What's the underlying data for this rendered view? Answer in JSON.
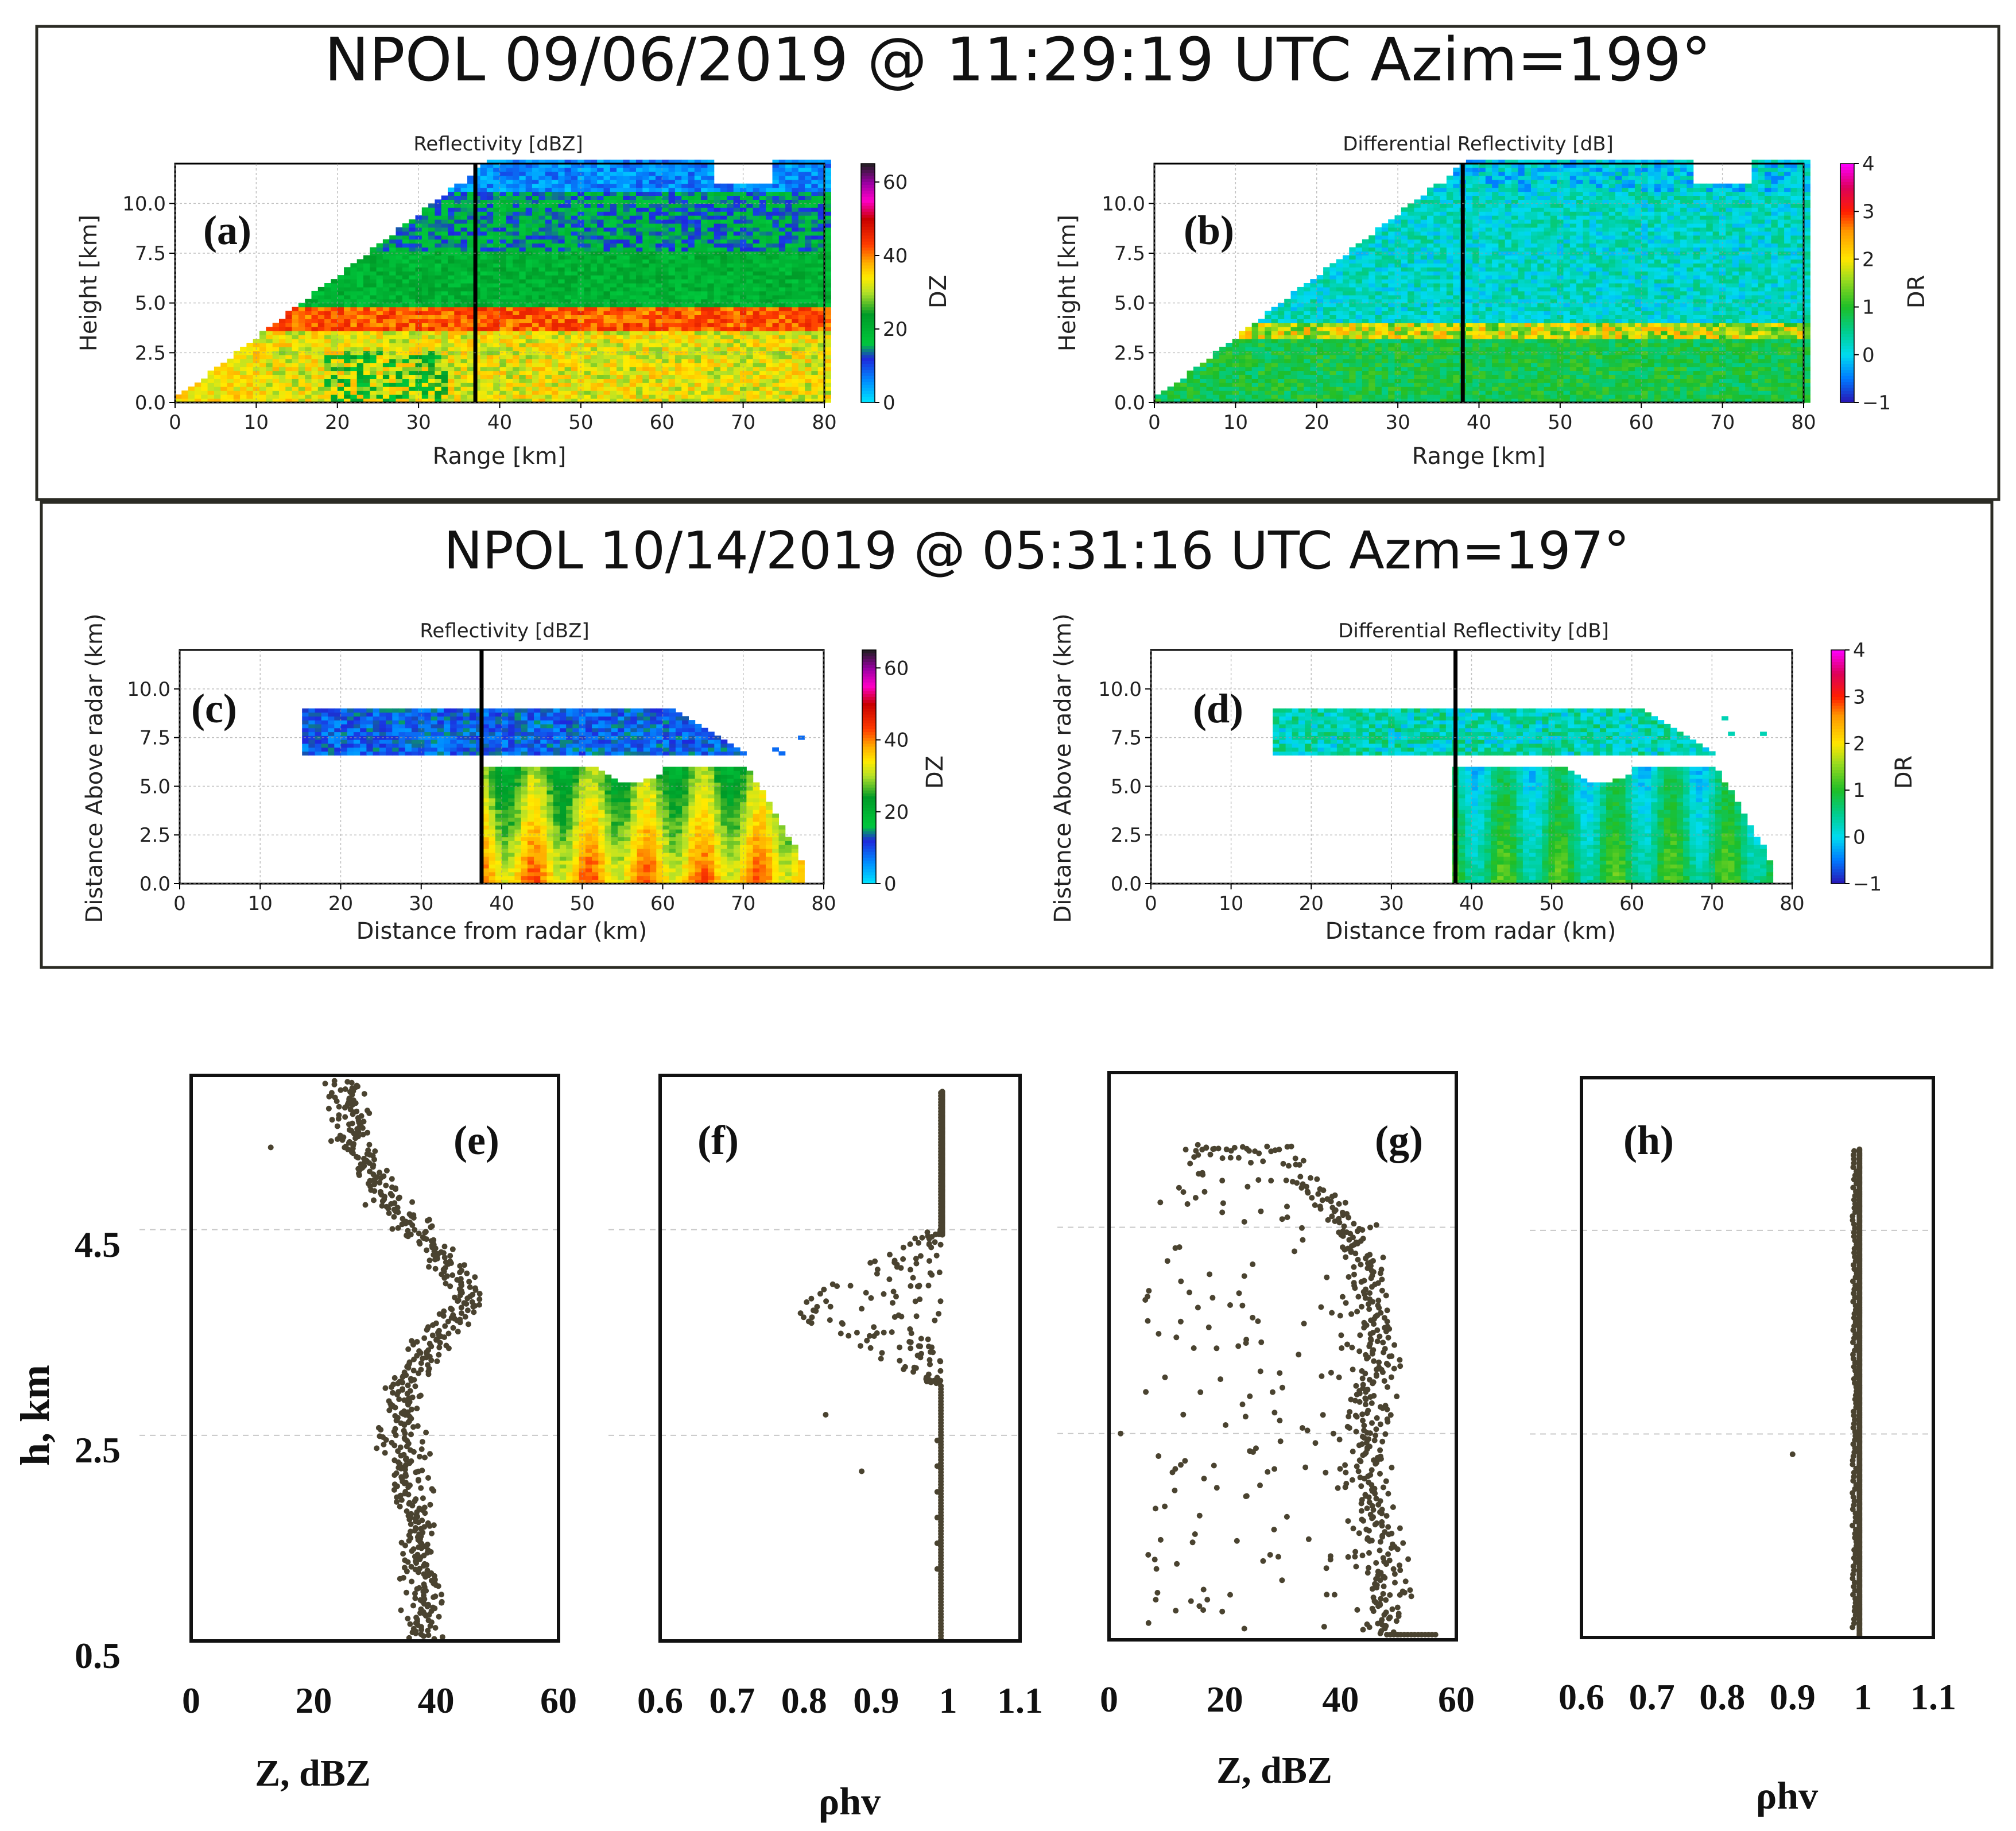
{
  "colors": {
    "frame": "#2b2b24",
    "scatter_dot": "#4a4330",
    "grid": "#c8c8c8",
    "marker_line": "#000000"
  },
  "top_panel": {
    "title": "NPOL 09/06/2019 @ 11:29:19 UTC   Azim=199°",
    "a": {
      "label": "(a)",
      "title": "Reflectivity [dBZ]",
      "xlabel": "Range [km]",
      "ylabel": "Height [km]",
      "cbar_label": "DZ",
      "cbar_ticks": [
        "0",
        "20",
        "40",
        "60"
      ]
    },
    "b": {
      "label": "(b)",
      "title": "Differential Reflectivity [dB]",
      "xlabel": "Range [km]",
      "ylabel": "Height [km]",
      "cbar_label": "DR",
      "cbar_ticks": [
        "−1",
        "0",
        "1",
        "2",
        "3",
        "4"
      ]
    }
  },
  "mid_panel": {
    "title": "NPOL 10/14/2019 @ 05:31:16 UTC  Azm=197°",
    "c": {
      "label": "(c)",
      "title": "Reflectivity [dBZ]",
      "xlabel": "Distance from radar (km)",
      "ylabel": "Distance Above radar  (km)",
      "cbar_label": "DZ",
      "cbar_ticks": [
        "0",
        "20",
        "40",
        "60"
      ]
    },
    "d": {
      "label": "(d)",
      "title": "Differential Reflectivity [dB]",
      "xlabel": "Distance from radar (km)",
      "ylabel": "Distance Above radar  (km)",
      "cbar_label": "DR",
      "cbar_ticks": [
        "−1",
        "0",
        "1",
        "2",
        "3",
        "4"
      ]
    }
  },
  "bottom_panel": {
    "ylabel": "h, km",
    "yticks": [
      "0.5",
      "2.5",
      "4.5"
    ],
    "e": {
      "label": "(e)",
      "xlabel": "Z, dBZ",
      "xticks": [
        "0",
        "20",
        "40",
        "60"
      ]
    },
    "f": {
      "label": "(f)",
      "xlabel": "ρhv",
      "xticks": [
        "0.6",
        "0.7",
        "0.8",
        "0.9",
        "1",
        "1.1"
      ]
    },
    "g": {
      "label": "(g)",
      "xlabel": "Z, dBZ",
      "xticks": [
        "0",
        "20",
        "40",
        "60"
      ]
    },
    "h": {
      "label": "(h)",
      "xlabel": "ρhv",
      "xticks": [
        "0.6",
        "0.7",
        "0.8",
        "0.9",
        "1",
        "1.1"
      ]
    }
  },
  "chart_data": [
    {
      "id": "a",
      "type": "heatmap",
      "title": "Reflectivity [dBZ]",
      "xlabel": "Range [km]",
      "ylabel": "Height [km]",
      "xlim": [
        0,
        80
      ],
      "ylim": [
        0,
        12
      ],
      "xticks": [
        0,
        10,
        20,
        30,
        40,
        50,
        60,
        70,
        80
      ],
      "yticks": [
        0.0,
        2.5,
        5.0,
        7.5,
        10.0
      ],
      "colorbar": {
        "label": "DZ",
        "range": [
          0,
          65
        ],
        "ticks": [
          0,
          20,
          40,
          60
        ]
      },
      "marker_line_x": 37,
      "layers": [
        {
          "height_km": [
            0,
            3.5
          ],
          "dBZ": [
            28,
            38
          ]
        },
        {
          "height_km": [
            3.5,
            4.8
          ],
          "dBZ": [
            38,
            46
          ]
        },
        {
          "height_km": [
            4.8,
            7.5
          ],
          "dBZ": [
            16,
            24
          ]
        },
        {
          "height_km": [
            7.5,
            10.5
          ],
          "dBZ": [
            10,
            20
          ]
        },
        {
          "height_km": [
            10.5,
            12
          ],
          "dBZ": [
            2,
            10
          ]
        }
      ]
    },
    {
      "id": "b",
      "type": "heatmap",
      "title": "Differential Reflectivity [dB]",
      "xlabel": "Range [km]",
      "ylabel": "Height [km]",
      "xlim": [
        0,
        80
      ],
      "ylim": [
        0,
        12
      ],
      "xticks": [
        0,
        10,
        20,
        30,
        40,
        50,
        60,
        70,
        80
      ],
      "yticks": [
        0.0,
        2.5,
        5.0,
        7.5,
        10.0
      ],
      "colorbar": {
        "label": "DR",
        "range": [
          -1,
          4
        ],
        "ticks": [
          -1,
          0,
          1,
          2,
          3,
          4
        ]
      },
      "marker_line_x": 38,
      "layers": [
        {
          "height_km": [
            0,
            3.2
          ],
          "DR": [
            0.5,
            1.2
          ]
        },
        {
          "height_km": [
            3.2,
            4.0
          ],
          "DR": [
            1.0,
            2.5
          ]
        },
        {
          "height_km": [
            4.0,
            10.5
          ],
          "DR": [
            -0.2,
            0.6
          ]
        },
        {
          "height_km": [
            10.5,
            12
          ],
          "DR": [
            -0.5,
            0.5
          ]
        }
      ]
    },
    {
      "id": "c",
      "type": "heatmap",
      "title": "Reflectivity [dBZ]",
      "xlabel": "Distance from radar (km)",
      "ylabel": "Distance Above radar  (km)",
      "xlim": [
        0,
        80
      ],
      "ylim": [
        0,
        12
      ],
      "xticks": [
        0,
        10,
        20,
        30,
        40,
        50,
        60,
        70,
        80
      ],
      "yticks": [
        0.0,
        2.5,
        5.0,
        7.5,
        10.0
      ],
      "colorbar": {
        "label": "DZ",
        "range": [
          0,
          65
        ],
        "ticks": [
          0,
          20,
          40,
          60
        ]
      },
      "marker_line_x": 37.5,
      "anvil": {
        "x_km": [
          15,
          75
        ],
        "height_km": [
          6.5,
          9
        ],
        "dBZ": [
          5,
          15
        ]
      },
      "convection": {
        "x_km": [
          37,
          77
        ],
        "height_km": [
          0,
          6
        ],
        "dBZ": [
          30,
          45
        ]
      }
    },
    {
      "id": "d",
      "type": "heatmap",
      "title": "Differential Reflectivity [dB]",
      "xlabel": "Distance from radar (km)",
      "ylabel": "Distance Above radar  (km)",
      "xlim": [
        0,
        80
      ],
      "ylim": [
        0,
        12
      ],
      "xticks": [
        0,
        10,
        20,
        30,
        40,
        50,
        60,
        70,
        80
      ],
      "yticks": [
        0.0,
        2.5,
        5.0,
        7.5,
        10.0
      ],
      "colorbar": {
        "label": "DR",
        "range": [
          -1,
          4
        ],
        "ticks": [
          -1,
          0,
          1,
          2,
          3,
          4
        ]
      },
      "marker_line_x": 38,
      "anvil": {
        "x_km": [
          15,
          75
        ],
        "height_km": [
          6.5,
          9
        ],
        "DR": [
          -0.2,
          0.8
        ]
      },
      "convection": {
        "x_km": [
          37,
          77
        ],
        "height_km": [
          0,
          6
        ],
        "DR": [
          0.2,
          1.5
        ]
      }
    },
    {
      "id": "e",
      "type": "scatter",
      "xlabel": "Z, dBZ",
      "ylabel": "h, km",
      "xlim": [
        0,
        60
      ],
      "ylim": [
        0.5,
        6.0
      ],
      "xticks": [
        0,
        20,
        40,
        60
      ],
      "yticks": [
        0.5,
        2.5,
        4.5
      ],
      "profile": [
        [
          0.5,
          38
        ],
        [
          1.0,
          38
        ],
        [
          1.5,
          37
        ],
        [
          2.0,
          36
        ],
        [
          2.5,
          34
        ],
        [
          3.0,
          35
        ],
        [
          3.4,
          39
        ],
        [
          3.8,
          45
        ],
        [
          4.1,
          43
        ],
        [
          4.4,
          38
        ],
        [
          4.8,
          32
        ],
        [
          5.3,
          27
        ],
        [
          5.9,
          25
        ]
      ],
      "spread_dBZ": 4
    },
    {
      "id": "f",
      "type": "scatter",
      "xlabel": "ρhv",
      "ylabel": "h, km",
      "xlim": [
        0.6,
        1.1
      ],
      "ylim": [
        0.5,
        6.0
      ],
      "xticks": [
        0.6,
        0.7,
        0.8,
        0.9,
        1,
        1.1
      ],
      "yticks": [
        0.5,
        2.5,
        4.5
      ],
      "baseline": 0.99,
      "melting_layer_km": [
        3.0,
        4.5
      ],
      "min_in_layer": 0.76,
      "outliers": [
        [
          0.83,
          2.7
        ],
        [
          0.88,
          2.15
        ]
      ]
    },
    {
      "id": "g",
      "type": "scatter",
      "xlabel": "Z, dBZ",
      "ylabel": "h, km",
      "xlim": [
        0,
        60
      ],
      "ylim": [
        0.5,
        6.0
      ],
      "xticks": [
        0,
        20,
        40,
        60
      ],
      "yticks": [
        0.5,
        2.5,
        4.5
      ],
      "profile": [
        [
          0.5,
          48
        ],
        [
          1.0,
          48
        ],
        [
          1.5,
          46
        ],
        [
          2.0,
          45
        ],
        [
          2.5,
          45
        ],
        [
          3.0,
          46
        ],
        [
          3.5,
          46
        ],
        [
          4.0,
          45
        ],
        [
          4.5,
          42
        ],
        [
          5.0,
          32
        ],
        [
          5.3,
          22
        ]
      ],
      "scatter_range_dBZ": [
        2,
        56
      ],
      "top_km": 5.3
    },
    {
      "id": "h",
      "type": "scatter",
      "xlabel": "ρhv",
      "ylabel": "h, km",
      "xlim": [
        0.6,
        1.1
      ],
      "ylim": [
        0.5,
        6.0
      ],
      "xticks": [
        0.6,
        0.7,
        0.8,
        0.9,
        1,
        1.1
      ],
      "yticks": [
        0.5,
        2.5,
        4.5
      ],
      "baseline": 0.995,
      "top_km": 5.3,
      "outliers": [
        [
          0.9,
          2.3
        ]
      ]
    }
  ]
}
